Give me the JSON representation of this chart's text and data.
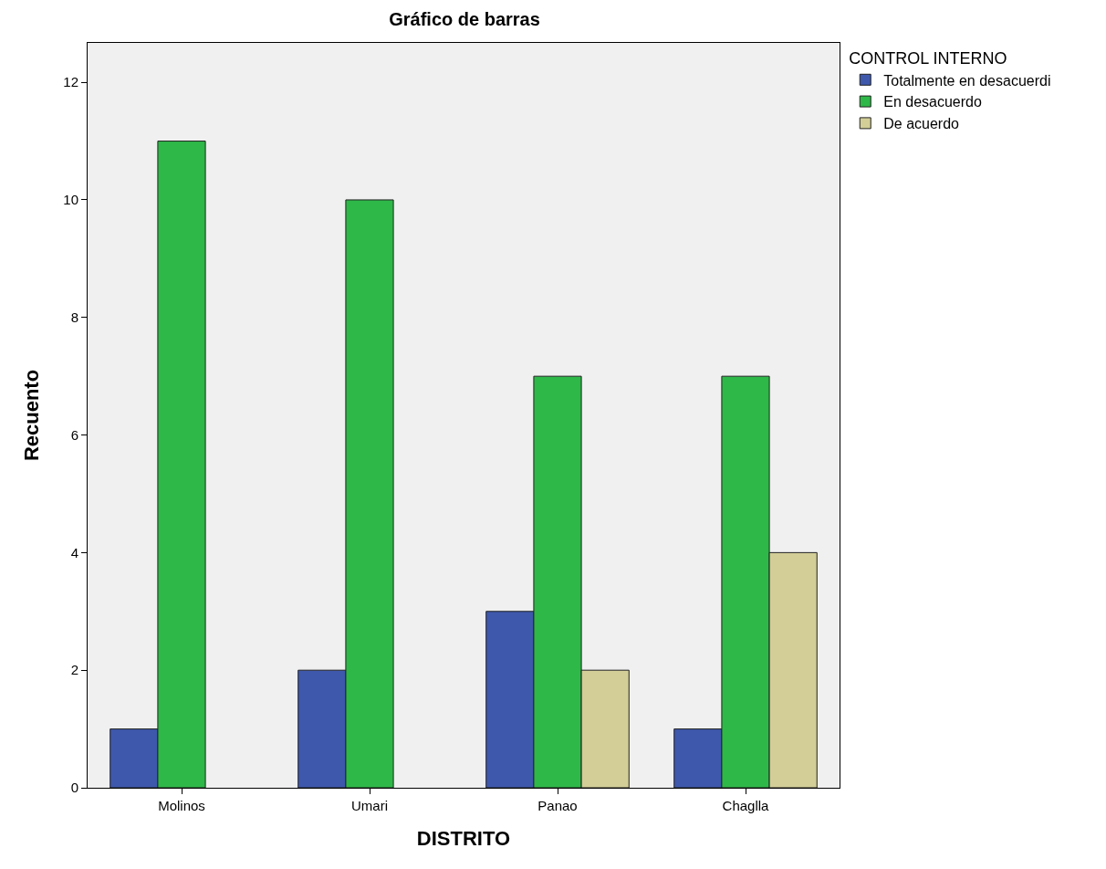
{
  "chart_data": {
    "type": "bar",
    "title": "Gráfico de barras",
    "xlabel": "DISTRITO",
    "ylabel": "Recuento",
    "legend_title": "CONTROL INTERNO",
    "categories": [
      "Molinos",
      "Umari",
      "Panao",
      "Chaglla"
    ],
    "series": [
      {
        "name": "Totalmente en desacuerdi",
        "color": "#3e58ac",
        "values": [
          1,
          2,
          3,
          1
        ]
      },
      {
        "name": "En desacuerdo",
        "color": "#2eb848",
        "values": [
          11,
          10,
          7,
          7
        ]
      },
      {
        "name": "De acuerdo",
        "color": "#d3ce97",
        "values": [
          null,
          null,
          2,
          4
        ]
      }
    ],
    "ylim": [
      0,
      12.67
    ],
    "yticks": [
      0,
      2,
      4,
      6,
      8,
      10,
      12
    ],
    "grid": false,
    "legend": "top right"
  }
}
